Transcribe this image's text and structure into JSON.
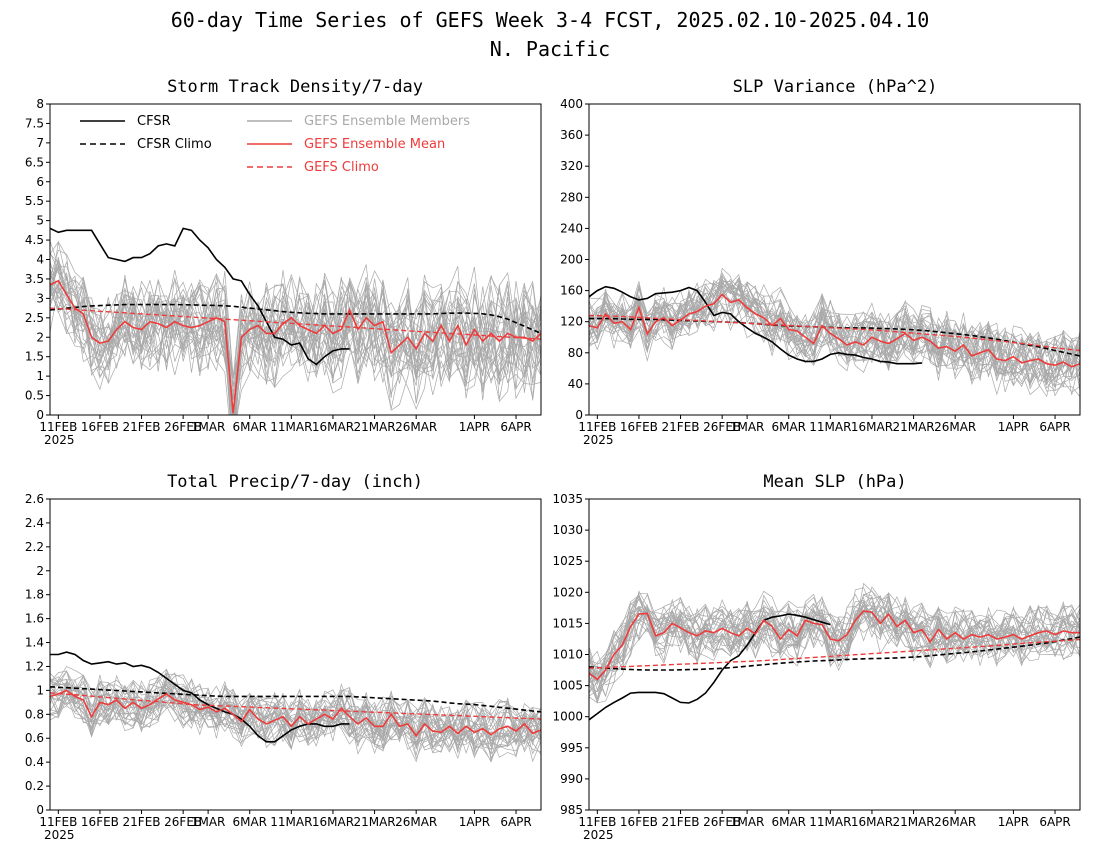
{
  "figure": {
    "title": "60-day Time Series of GEFS Week 3-4 FCST, 2025.02.10-2025.04.10",
    "subtitle": "N. Pacific"
  },
  "colors": {
    "cfsr": "#000000",
    "members": "#a9a9a9",
    "mean": "#ee3b3b",
    "axis": "#000000"
  },
  "legend": {
    "cfsr": "CFSR",
    "cfsr_climo": "CFSR Climo",
    "members": "GEFS Ensemble Members",
    "mean": "GEFS Ensemble Mean",
    "gefs_climo": "GEFS Climo"
  },
  "x_ticks": [
    "11FEB",
    "16FEB",
    "21FEB",
    "26FEB",
    "1MAR",
    "6MAR",
    "11MAR",
    "16MAR",
    "21MAR",
    "26MAR",
    "1APR",
    "6APR"
  ],
  "x_ticks_display": [
    "11FEB",
    "16FEB",
    "21FEB",
    "26FEB",
    "1MAR",
    "6MAR",
    "11MAR",
    "16MAR",
    "21MAR",
    "26MAR",
    "1APR",
    "6APR"
  ],
  "x_tick_days": [
    1,
    6,
    11,
    16,
    19,
    24,
    29,
    34,
    39,
    44,
    51,
    56
  ],
  "x_year": "2025",
  "chart_data": [
    {
      "type": "line",
      "title": "Storm Track Density/7-day",
      "x_range": [
        "2025-02-10",
        "2025-04-10"
      ],
      "ylim": [
        0,
        8
      ],
      "yticks": [
        0,
        0.5,
        1,
        1.5,
        2,
        2.5,
        3,
        3.5,
        4,
        4.5,
        5,
        5.5,
        6,
        6.5,
        7,
        7.5,
        8
      ],
      "ytick_labels": [
        "0",
        "0.5",
        "1",
        "1.5",
        "2",
        "2.5",
        "3",
        "3.5",
        "4",
        "4.5",
        "5",
        "5.5",
        "6",
        "6.5",
        "7",
        "7.5",
        "8"
      ],
      "member_spread": [
        1.0,
        1.6
      ],
      "series": [
        {
          "name": "CFSR",
          "style": "solid-black",
          "values": [
            4.8,
            4.7,
            4.75,
            4.75,
            4.75,
            4.75,
            4.4,
            4.05,
            4.0,
            3.95,
            4.05,
            4.05,
            4.15,
            4.35,
            4.4,
            4.35,
            4.8,
            4.75,
            4.5,
            4.3,
            4.0,
            3.8,
            3.5,
            3.45,
            3.1,
            2.8,
            2.4,
            2.0,
            1.95,
            1.8,
            1.85,
            1.45,
            1.3,
            1.5,
            1.65,
            1.7,
            1.7
          ]
        },
        {
          "name": "CFSR Climo",
          "style": "dashed-black",
          "values": [
            2.7,
            2.75,
            2.8,
            2.82,
            2.84,
            2.84,
            2.84,
            2.84,
            2.83,
            2.82,
            2.8,
            2.75,
            2.7,
            2.65,
            2.62,
            2.6,
            2.6,
            2.6,
            2.6,
            2.6,
            2.6,
            2.6,
            2.62,
            2.62,
            2.6,
            2.5,
            2.3,
            2.1
          ]
        },
        {
          "name": "GEFS Ensemble Mean",
          "style": "solid-red",
          "values": [
            3.35,
            3.45,
            3.1,
            2.75,
            2.6,
            2.0,
            1.85,
            1.9,
            2.2,
            2.4,
            2.25,
            2.2,
            2.4,
            2.35,
            2.25,
            2.4,
            2.3,
            2.25,
            2.3,
            2.4,
            2.5,
            2.4,
            0.05,
            2.0,
            2.2,
            2.3,
            2.1,
            2.1,
            2.35,
            2.5,
            2.3,
            2.2,
            2.1,
            2.3,
            2.1,
            2.2,
            2.7,
            2.2,
            2.5,
            2.3,
            2.4,
            1.6,
            1.8,
            2.0,
            1.7,
            2.1,
            1.9,
            2.3,
            1.9,
            2.3,
            1.8,
            2.2,
            1.9,
            2.1,
            1.9,
            2.1,
            2.0,
            2.0,
            1.9,
            2.1
          ]
        },
        {
          "name": "GEFS Climo",
          "style": "dashed-red",
          "values": [
            2.75,
            2.7,
            2.65,
            2.6,
            2.55,
            2.5,
            2.45,
            2.4,
            2.35,
            2.3,
            2.25,
            2.2,
            2.15,
            2.1,
            2.05,
            2.0,
            1.95
          ]
        }
      ]
    },
    {
      "type": "line",
      "title": "SLP Variance (hPa^2)",
      "x_range": [
        "2025-02-10",
        "2025-04-10"
      ],
      "ylim": [
        0,
        400
      ],
      "yticks": [
        0,
        40,
        80,
        120,
        160,
        200,
        240,
        280,
        320,
        360,
        400
      ],
      "ytick_labels": [
        "0",
        "40",
        "80",
        "120",
        "160",
        "200",
        "240",
        "280",
        "320",
        "360",
        "400"
      ],
      "member_spread": [
        30,
        45
      ],
      "series": [
        {
          "name": "CFSR",
          "style": "solid-black",
          "values": [
            152,
            160,
            165,
            163,
            158,
            152,
            148,
            150,
            156,
            157,
            158,
            160,
            164,
            160,
            145,
            128,
            132,
            130,
            120,
            112,
            105,
            100,
            94,
            85,
            77,
            72,
            69,
            69,
            72,
            78,
            80,
            78,
            77,
            74,
            72,
            69,
            68,
            66,
            66,
            66,
            67
          ]
        },
        {
          "name": "CFSR Climo",
          "style": "dashed-black",
          "values": [
            124,
            124,
            123,
            123,
            122,
            121,
            120,
            119,
            117,
            115,
            114,
            113,
            112,
            112,
            111,
            110,
            108,
            105,
            102,
            98,
            93,
            88,
            82,
            76
          ]
        },
        {
          "name": "GEFS Ensemble Mean",
          "style": "solid-red",
          "values": [
            115,
            112,
            130,
            118,
            120,
            110,
            138,
            104,
            120,
            125,
            115,
            122,
            130,
            133,
            140,
            143,
            155,
            145,
            148,
            138,
            130,
            125,
            115,
            124,
            110,
            108,
            100,
            92,
            115,
            105,
            98,
            90,
            94,
            90,
            100,
            95,
            92,
            98,
            105,
            96,
            100,
            95,
            86,
            88,
            82,
            90,
            76,
            80,
            84,
            72,
            70,
            75,
            67,
            70,
            72,
            66,
            64,
            68,
            62,
            66
          ]
        },
        {
          "name": "GEFS Climo",
          "style": "dashed-red",
          "values": [
            128,
            127,
            125,
            123,
            121,
            119,
            117,
            115,
            113,
            111,
            109,
            106,
            103,
            100,
            96,
            92,
            87,
            83
          ]
        }
      ]
    },
    {
      "type": "line",
      "title": "Total Precip/7-day (inch)",
      "x_range": [
        "2025-02-10",
        "2025-04-10"
      ],
      "ylim": [
        0,
        2.6
      ],
      "yticks": [
        0,
        0.2,
        0.4,
        0.6,
        0.8,
        1,
        1.2,
        1.4,
        1.6,
        1.8,
        2,
        2.2,
        2.4,
        2.6
      ],
      "ytick_labels": [
        "0",
        "0.2",
        "0.4",
        "0.6",
        "0.8",
        "1",
        "1.2",
        "1.4",
        "1.6",
        "1.8",
        "2",
        "2.2",
        "2.4",
        "2.6"
      ],
      "member_spread": [
        0.18,
        0.22
      ],
      "series": [
        {
          "name": "CFSR",
          "style": "solid-black",
          "values": [
            1.3,
            1.3,
            1.32,
            1.3,
            1.25,
            1.22,
            1.23,
            1.24,
            1.22,
            1.23,
            1.2,
            1.21,
            1.19,
            1.15,
            1.1,
            1.05,
            1.0,
            0.98,
            0.92,
            0.88,
            0.85,
            0.82,
            0.8,
            0.76,
            0.7,
            0.62,
            0.57,
            0.57,
            0.62,
            0.67,
            0.7,
            0.72,
            0.72,
            0.7,
            0.7,
            0.72,
            0.72
          ]
        },
        {
          "name": "CFSR Climo",
          "style": "dashed-black",
          "values": [
            1.03,
            1.02,
            1.01,
            1.0,
            0.99,
            0.98,
            0.97,
            0.96,
            0.95,
            0.95,
            0.95,
            0.95,
            0.95,
            0.95,
            0.95,
            0.94,
            0.93,
            0.92,
            0.91,
            0.89,
            0.88,
            0.86,
            0.84,
            0.82
          ]
        },
        {
          "name": "GEFS Ensemble Mean",
          "style": "solid-red",
          "values": [
            0.95,
            0.97,
            1.0,
            0.95,
            0.92,
            0.78,
            0.9,
            0.88,
            0.92,
            0.85,
            0.9,
            0.85,
            0.88,
            0.93,
            0.97,
            0.92,
            0.9,
            0.88,
            0.84,
            0.86,
            0.82,
            0.85,
            0.8,
            0.74,
            0.84,
            0.76,
            0.72,
            0.75,
            0.78,
            0.7,
            0.78,
            0.72,
            0.76,
            0.8,
            0.76,
            0.85,
            0.78,
            0.72,
            0.77,
            0.7,
            0.7,
            0.8,
            0.7,
            0.72,
            0.62,
            0.72,
            0.66,
            0.65,
            0.7,
            0.64,
            0.7,
            0.65,
            0.68,
            0.63,
            0.68,
            0.7,
            0.66,
            0.72,
            0.64,
            0.67
          ]
        },
        {
          "name": "GEFS Climo",
          "style": "dashed-red",
          "values": [
            0.98,
            0.96,
            0.94,
            0.92,
            0.9,
            0.88,
            0.87,
            0.86,
            0.85,
            0.84,
            0.83,
            0.82,
            0.81,
            0.8,
            0.79,
            0.78,
            0.77,
            0.76
          ]
        }
      ]
    },
    {
      "type": "line",
      "title": "Mean SLP (hPa)",
      "x_range": [
        "2025-02-10",
        "2025-04-10"
      ],
      "ylim": [
        985,
        1035
      ],
      "yticks": [
        985,
        990,
        995,
        1000,
        1005,
        1010,
        1015,
        1020,
        1025,
        1030,
        1035
      ],
      "ytick_labels": [
        "985",
        "990",
        "995",
        "1000",
        "1005",
        "1010",
        "1015",
        "1020",
        "1025",
        "1030",
        "1035"
      ],
      "member_spread": [
        4.0,
        4.0
      ],
      "series": [
        {
          "name": "CFSR",
          "style": "solid-black",
          "values": [
            999.5,
            1000.5,
            1001.5,
            1002.3,
            1003.0,
            1003.8,
            1003.9,
            1003.9,
            1003.9,
            1003.7,
            1003.0,
            1002.3,
            1002.2,
            1002.8,
            1003.8,
            1005.5,
            1007.5,
            1009.0,
            1009.8,
            1011.5,
            1013.5,
            1015.5,
            1016.0,
            1016.2,
            1016.5,
            1016.3,
            1016.0,
            1015.6,
            1015.2,
            1014.8
          ]
        },
        {
          "name": "CFSR Climo",
          "style": "dashed-black",
          "values": [
            1008.0,
            1007.7,
            1007.5,
            1007.5,
            1007.6,
            1007.8,
            1008.2,
            1008.6,
            1008.9,
            1009.1,
            1009.3,
            1009.4,
            1009.6,
            1010.0,
            1010.4,
            1010.9,
            1011.4,
            1012.0,
            1012.8
          ]
        },
        {
          "name": "GEFS Ensemble Mean",
          "style": "solid-red",
          "values": [
            1007.0,
            1006.0,
            1007.5,
            1010.0,
            1011.5,
            1014.5,
            1016.5,
            1016.6,
            1013.0,
            1013.5,
            1015.0,
            1014.3,
            1013.5,
            1013.0,
            1013.8,
            1013.5,
            1014.2,
            1013.5,
            1013.0,
            1014.2,
            1013.3,
            1015.5,
            1014.5,
            1012.5,
            1014.0,
            1013.0,
            1015.5,
            1015.0,
            1014.8,
            1012.5,
            1012.2,
            1013.2,
            1015.5,
            1017.0,
            1016.8,
            1015.0,
            1016.5,
            1014.5,
            1015.5,
            1013.5,
            1014.0,
            1012.0,
            1014.0,
            1012.5,
            1013.5,
            1012.5,
            1013.2,
            1012.8,
            1013.2,
            1012.5,
            1012.8,
            1013.2,
            1012.5,
            1013.0,
            1013.5,
            1013.8,
            1013.2,
            1013.8,
            1013.5,
            1013.5
          ]
        },
        {
          "name": "GEFS Climo",
          "style": "dashed-red",
          "values": [
            1007.8,
            1008.0,
            1008.2,
            1008.4,
            1008.6,
            1008.8,
            1009.0,
            1009.3,
            1009.6,
            1009.9,
            1010.2,
            1010.5,
            1010.8,
            1011.1,
            1011.4,
            1011.8,
            1012.1,
            1012.4
          ]
        }
      ]
    }
  ]
}
